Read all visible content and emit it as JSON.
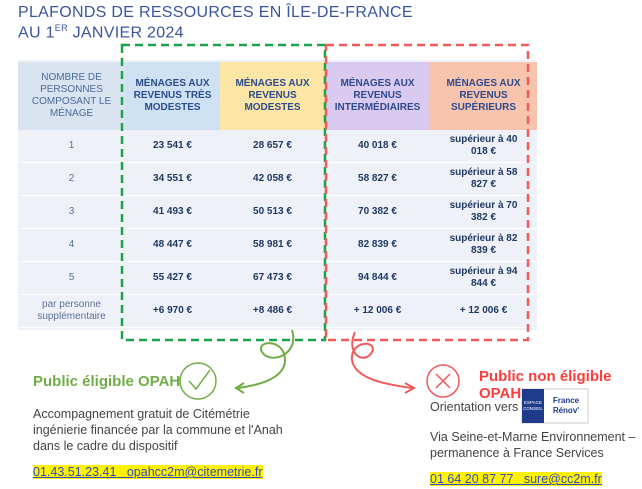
{
  "header": {
    "title_line1": "PLAFONDS DE RESSOURCES EN ÎLE-DE-FRANCE",
    "title_line2_start": "AU 1",
    "title_line2_sup": "ER",
    "title_line2_end": " JANVIER 2024"
  },
  "table": {
    "columns": [
      "NOMBRE DE PERSONNES COMPOSANT LE MÉNAGE",
      "MÉNAGES AUX REVENUS TRÈS MODESTES",
      "MÉNAGES AUX REVENUS MODESTES",
      "MÉNAGES AUX REVENUS INTERMÉDIAIRES",
      "MÉNAGES AUX REVENUS SUPÉRIEURS"
    ],
    "rows": [
      [
        "1",
        "23 541 €",
        "28 657 €",
        "40 018 €",
        "supérieur à 40 018 €"
      ],
      [
        "2",
        "34 551 €",
        "42 058 €",
        "58 827 €",
        "supérieur à 58 827 €"
      ],
      [
        "3",
        "41 493 €",
        "50 513 €",
        "70 382 €",
        "supérieur à 70 382 €"
      ],
      [
        "4",
        "48 447 €",
        "58 981 €",
        "82 839 €",
        "supérieur à 82 839 €"
      ],
      [
        "5",
        "55 427 €",
        "67 473 €",
        "94 844 €",
        "supérieur à 94 844 €"
      ],
      [
        "par personne supplémentaire",
        "+6 970 €",
        "+8 486 €",
        "+ 12 006 €",
        "+ 12 006 €"
      ]
    ]
  },
  "eligible": {
    "title": "Public éligible OPAH",
    "text": "Accompagnement gratuit de Citémétrie ingénierie financée par la commune et l'Anah dans le cadre du dispositif",
    "phone": "01.43.51.23.41",
    "email": "opahcc2m@citemetrie.fr"
  },
  "non_eligible": {
    "title": "Public non éligible OPAH",
    "orientation": "Orientation vers",
    "logo_top": "ESPACE CONSEIL",
    "logo_brand": "France Rénov'",
    "text": "Via Seine-et-Marne Environnement – permanence à France Services",
    "phone": "01 64 20 87 77",
    "email": "sure@cc2m.fr"
  }
}
